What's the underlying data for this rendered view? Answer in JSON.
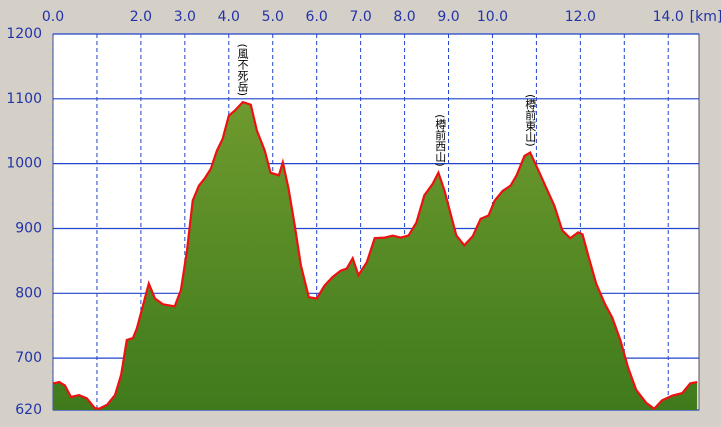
{
  "chart_data": {
    "type": "area",
    "x": [
      0,
      0.14,
      0.27,
      0.41,
      0.59,
      0.77,
      0.95,
      1.05,
      1.23,
      1.41,
      1.55,
      1.68,
      1.82,
      1.91,
      2.05,
      2.18,
      2.32,
      2.5,
      2.77,
      2.91,
      3.05,
      3.18,
      3.32,
      3.45,
      3.59,
      3.73,
      3.86,
      4.0,
      4.14,
      4.32,
      4.5,
      4.64,
      4.82,
      4.95,
      5.14,
      5.23,
      5.36,
      5.5,
      5.64,
      5.82,
      6.0,
      6.18,
      6.36,
      6.55,
      6.68,
      6.82,
      6.95,
      7.14,
      7.32,
      7.55,
      7.73,
      7.91,
      8.09,
      8.27,
      8.45,
      8.64,
      8.77,
      8.91,
      9.05,
      9.18,
      9.36,
      9.55,
      9.73,
      9.91,
      10.05,
      10.23,
      10.41,
      10.55,
      10.73,
      10.86,
      11.05,
      11.23,
      11.41,
      11.59,
      11.77,
      11.95,
      12.05,
      12.18,
      12.36,
      12.55,
      12.73,
      12.91,
      13.09,
      13.27,
      13.5,
      13.68,
      13.86,
      14.09,
      14.32,
      14.5,
      14.66
    ],
    "values": [
      661,
      663,
      658,
      640,
      643,
      638,
      623,
      622,
      628,
      643,
      674,
      728,
      731,
      746,
      782,
      815,
      792,
      783,
      780,
      805,
      866,
      943,
      966,
      977,
      992,
      1020,
      1038,
      1074,
      1082,
      1095,
      1091,
      1051,
      1020,
      986,
      982,
      1002,
      962,
      905,
      843,
      794,
      792,
      812,
      825,
      835,
      838,
      854,
      828,
      848,
      885,
      886,
      889,
      886,
      889,
      909,
      951,
      969,
      986,
      958,
      922,
      889,
      874,
      888,
      915,
      920,
      943,
      958,
      966,
      982,
      1012,
      1017,
      989,
      962,
      935,
      897,
      885,
      894,
      891,
      858,
      815,
      785,
      762,
      728,
      685,
      651,
      631,
      622,
      635,
      642,
      646,
      661,
      663
    ],
    "color": "#6e9a2e",
    "line_color": "#ee1111",
    "grid_color": "#2244cc",
    "xlim": [
      0,
      14.7
    ],
    "ylim": [
      620,
      1200
    ],
    "xticks": [
      {
        "value": 0,
        "label": "0.0"
      },
      {
        "value": 2,
        "label": "2.0"
      },
      {
        "value": 3,
        "label": "3.0"
      },
      {
        "value": 4,
        "label": "4.0"
      },
      {
        "value": 5,
        "label": "5.0"
      },
      {
        "value": 6,
        "label": "6.0"
      },
      {
        "value": 7,
        "label": "7.0"
      },
      {
        "value": 8,
        "label": "8.0"
      },
      {
        "value": 9,
        "label": "9.0"
      },
      {
        "value": 10,
        "label": "10.0"
      },
      {
        "value": 12,
        "label": "12.0"
      },
      {
        "value": 14,
        "label": "14.0"
      }
    ],
    "xminor": [
      1,
      11,
      13
    ],
    "yticks": [
      620,
      700,
      800,
      900,
      1000,
      1100,
      1200
    ],
    "x_label": "[km]",
    "annotations": [
      {
        "text": "(風不死岳)",
        "x": 4.3,
        "y": 1095
      },
      {
        "text": "(樽前西山)",
        "x": 8.8,
        "y": 986
      },
      {
        "text": "(樽前東山)",
        "x": 10.85,
        "y": 1017
      }
    ],
    "grid": true
  }
}
